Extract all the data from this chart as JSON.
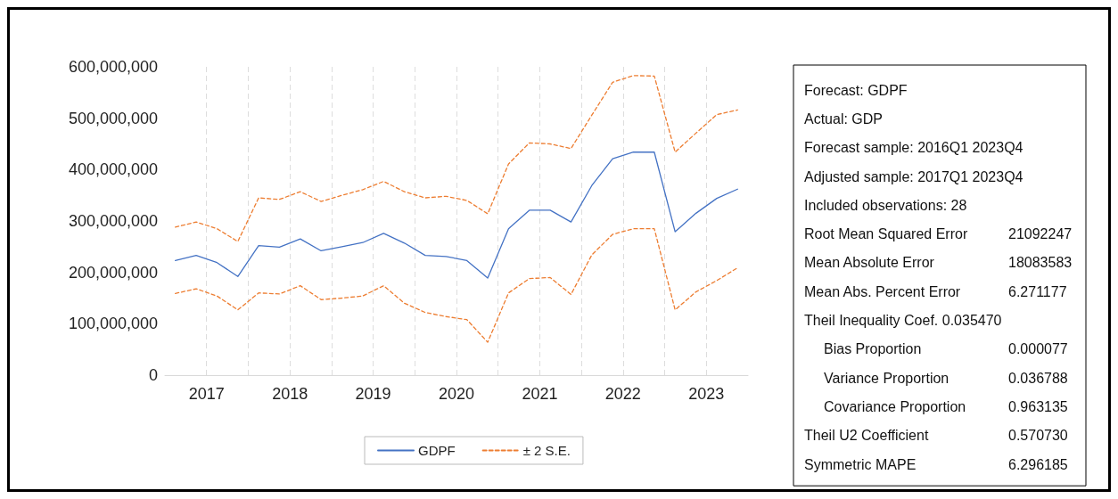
{
  "chart_data": {
    "type": "line",
    "x": [
      2017.125,
      2017.375,
      2017.625,
      2017.875,
      2018.125,
      2018.375,
      2018.625,
      2018.875,
      2019.125,
      2019.375,
      2019.625,
      2019.875,
      2020.125,
      2020.375,
      2020.625,
      2020.875,
      2021.125,
      2021.375,
      2021.625,
      2021.875,
      2022.125,
      2022.375,
      2022.625,
      2022.875,
      2023.125,
      2023.375,
      2023.625,
      2023.875
    ],
    "series": [
      {
        "name": "GDPF",
        "color": "#4472c4",
        "line_style": "solid",
        "values": [
          223000000,
          233000000,
          219000000,
          192000000,
          252000000,
          249000000,
          265000000,
          242000000,
          250000000,
          258000000,
          276000000,
          257000000,
          233000000,
          231000000,
          223000000,
          189000000,
          285000000,
          321000000,
          321000000,
          298000000,
          369000000,
          421000000,
          434000000,
          434000000,
          279000000,
          315000000,
          344000000,
          362000000
        ]
      },
      {
        "name": "± 2 S.E.",
        "color": "#ed7d31",
        "line_style": "dashed",
        "values": [
          288000000,
          298000000,
          285000000,
          260000000,
          345000000,
          342000000,
          357000000,
          338000000,
          350000000,
          361000000,
          377000000,
          357000000,
          345000000,
          348000000,
          340000000,
          314000000,
          411000000,
          452000000,
          450000000,
          441000000,
          506000000,
          570000000,
          583000000,
          582000000,
          434000000,
          471000000,
          507000000,
          516000000
        ]
      },
      {
        "color": "#ed7d31",
        "line_style": "dashed",
        "values": [
          159000000,
          168000000,
          154000000,
          127000000,
          160000000,
          158000000,
          174000000,
          147000000,
          150000000,
          154000000,
          174000000,
          140000000,
          122000000,
          114000000,
          108000000,
          64000000,
          160000000,
          188000000,
          190000000,
          157000000,
          234000000,
          274000000,
          285000000,
          285000000,
          127000000,
          162000000,
          184000000,
          209000000
        ]
      }
    ],
    "xlim": [
      2017,
      2024
    ],
    "xticks": [
      {
        "value": 2017.5,
        "label": "2017"
      },
      {
        "value": 2018,
        "label": null
      },
      {
        "value": 2018.5,
        "label": "2018"
      },
      {
        "value": 2019,
        "label": null
      },
      {
        "value": 2019.5,
        "label": "2019"
      },
      {
        "value": 2020,
        "label": null
      },
      {
        "value": 2020.5,
        "label": "2020"
      },
      {
        "value": 2021,
        "label": null
      },
      {
        "value": 2021.5,
        "label": "2021"
      },
      {
        "value": 2022,
        "label": null
      },
      {
        "value": 2022.5,
        "label": "2022"
      },
      {
        "value": 2023,
        "label": null
      },
      {
        "value": 2023.5,
        "label": "2023"
      }
    ],
    "ylim": [
      0,
      600000000
    ],
    "yticks": [
      0,
      {
        "value": 100000000,
        "label": "100,000,000"
      },
      {
        "value": 200000000,
        "label": "200,000,000"
      },
      {
        "value": 300000000,
        "label": "300,000,000"
      },
      {
        "value": 400000000,
        "label": "400,000,000"
      },
      {
        "value": 500000000,
        "label": "500,000,000"
      },
      {
        "value": 600000000,
        "label": "600,000,000"
      }
    ],
    "grid": "x",
    "legend": "bottom",
    "marker": "none",
    "annotations": [
      "Forecast: GDPF",
      "Actual: GDP",
      "Forecast sample: 2016Q1 2023Q4",
      "Adjusted sample: 2017Q1 2023Q4",
      "Included observations: 28",
      "Root Mean Squared Error\t21092247",
      "Mean Absolute Error\t18083583",
      "Mean Abs. Percent Error\t6.271177",
      "Theil Inequality Coef. 0.035470",
      "   Bias Proportion\t0.000077",
      "   Variance Proportion\t0.036788",
      "   Covariance Proportion\t0.963135",
      "Theil U2 Coefficient\t0.570730",
      "Symmetric MAPE\t6.296185"
    ]
  }
}
